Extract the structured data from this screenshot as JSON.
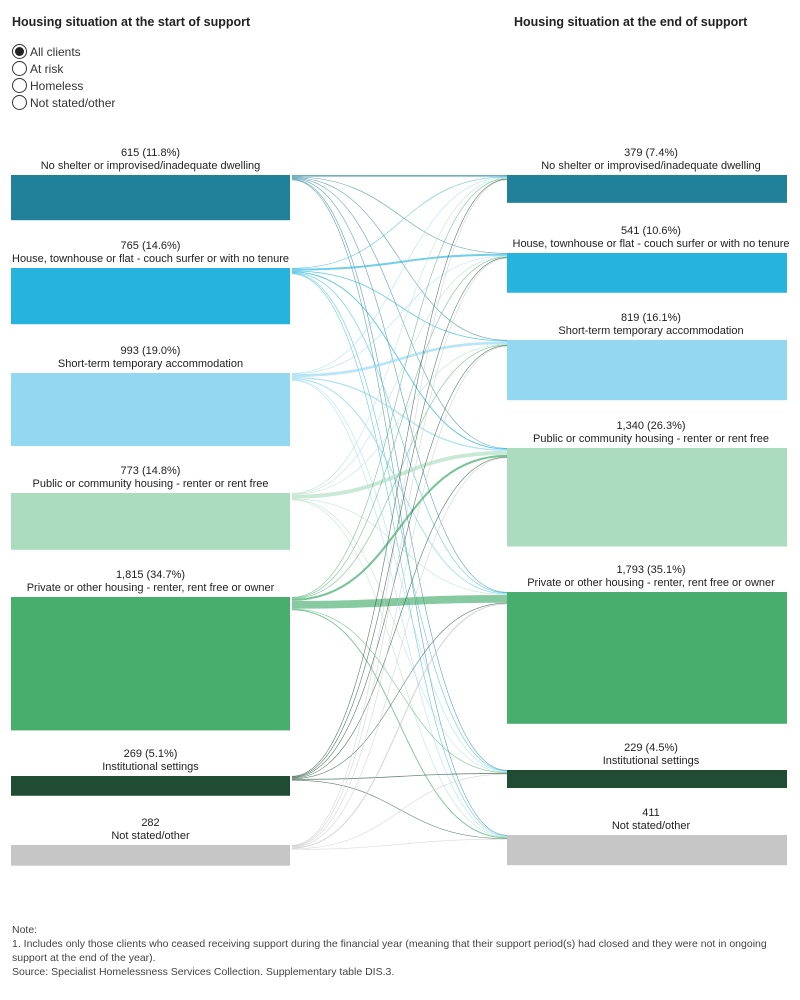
{
  "header": {
    "left_title": "Housing situation at the start of support",
    "right_title": "Housing situation at the end of support"
  },
  "filter": {
    "options": [
      "All clients",
      "At risk",
      "Homeless",
      "Not stated/other"
    ],
    "selected": "All clients"
  },
  "chart_data": {
    "type": "sankey",
    "source_nodes": [
      {
        "name": "No shelter or improvised/inadequate dwelling",
        "value": 615,
        "value_label": "615 (11.8%)",
        "color": "#22819a"
      },
      {
        "name": "House, townhouse or flat - couch surfer or with no tenure",
        "value": 765,
        "value_label": "765 (14.6%)",
        "color": "#26b4de"
      },
      {
        "name": "Short-term temporary accommodation",
        "value": 993,
        "value_label": "993 (19.0%)",
        "color": "#93d7f1"
      },
      {
        "name": "Public or community housing - renter or rent free",
        "value": 773,
        "value_label": "773 (14.8%)",
        "color": "#acdcc0"
      },
      {
        "name": "Private or other housing - renter, rent free or owner",
        "value": 1815,
        "value_label": "1,815 (34.7%)",
        "color": "#47ae6e"
      },
      {
        "name": "Institutional settings",
        "value": 269,
        "value_label": "269 (5.1%)",
        "color": "#214c34"
      },
      {
        "name": "Not stated/other",
        "value": 282,
        "value_label": "282",
        "color": "#c6c6c6"
      }
    ],
    "target_nodes": [
      {
        "name": "No shelter or improvised/inadequate dwelling",
        "value": 379,
        "value_label": "379 (7.4%)",
        "color": "#22819a"
      },
      {
        "name": "House, townhouse or flat - couch surfer or with no tenure",
        "value": 541,
        "value_label": "541 (10.6%)",
        "color": "#26b4de"
      },
      {
        "name": "Short-term temporary accommodation",
        "value": 819,
        "value_label": "819 (16.1%)",
        "color": "#93d7f1"
      },
      {
        "name": "Public or community housing - renter or rent free",
        "value": 1340,
        "value_label": "1,340 (26.3%)",
        "color": "#acdcc0"
      },
      {
        "name": "Private or other housing - renter, rent free or owner",
        "value": 1793,
        "value_label": "1,793 (35.1%)",
        "color": "#47ae6e"
      },
      {
        "name": "Institutional settings",
        "value": 229,
        "value_label": "229 (4.5%)",
        "color": "#214c34"
      },
      {
        "name": "Not stated/other",
        "value": 411,
        "value_label": "411",
        "color": "#c6c6c6"
      }
    ],
    "flows": [
      [
        240,
        60,
        70,
        60,
        90,
        25,
        70
      ],
      [
        50,
        300,
        120,
        150,
        80,
        15,
        50
      ],
      [
        40,
        70,
        420,
        200,
        170,
        20,
        73
      ],
      [
        10,
        15,
        40,
        580,
        80,
        8,
        40
      ],
      [
        20,
        40,
        90,
        320,
        1180,
        25,
        140
      ],
      [
        9,
        30,
        40,
        20,
        30,
        130,
        10
      ],
      [
        10,
        26,
        39,
        10,
        163,
        6,
        28
      ]
    ]
  },
  "notes": {
    "heading": "Note:",
    "line1": "1.  Includes only those clients who ceased receiving support during the financial year (meaning that their support period(s) had closed and they were not in ongoing support at the end of the year).",
    "source": "Source: Specialist Homelessness Services Collection. Supplementary table DIS.3."
  }
}
